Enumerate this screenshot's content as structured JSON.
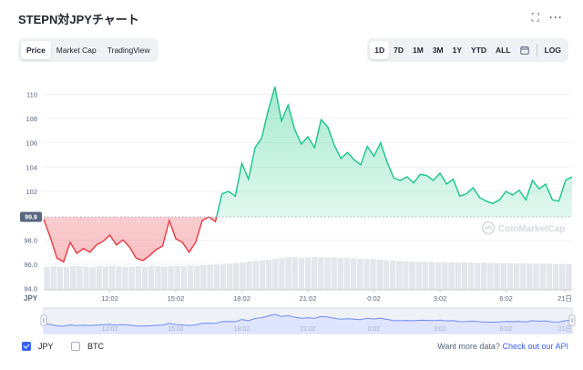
{
  "header": {
    "title": "STEPN対JPYチャート",
    "expand_icon": "expand-icon",
    "more_icon": "more-icon"
  },
  "tabs": [
    {
      "label": "Price",
      "active": true
    },
    {
      "label": "Market Cap",
      "active": false
    },
    {
      "label": "TradingView",
      "active": false
    }
  ],
  "ranges": [
    {
      "label": "1D",
      "active": true
    },
    {
      "label": "7D",
      "active": false
    },
    {
      "label": "1M",
      "active": false
    },
    {
      "label": "3M",
      "active": false
    },
    {
      "label": "1Y",
      "active": false
    },
    {
      "label": "YTD",
      "active": false
    },
    {
      "label": "ALL",
      "active": false
    }
  ],
  "calendar_icon": "calendar-icon",
  "log_label": "LOG",
  "watermark": "CoinMarketCap",
  "colors": {
    "up": "#16c784",
    "down": "#ea3943",
    "brand": "#3861fb",
    "volume": "#e3e6eb"
  },
  "chart_data": {
    "type": "line",
    "currency_label": "JPY",
    "reference_value": 99.9,
    "y_ticks": [
      94.0,
      96.0,
      98.0,
      102,
      104,
      106,
      108,
      110
    ],
    "ylim": [
      93.9,
      111.6
    ],
    "x_ticks": [
      "12:02",
      "15:02",
      "18:02",
      "21:02",
      "0:02",
      "3:02",
      "6:02",
      "21日"
    ],
    "x_tick_hours": [
      3,
      6,
      9,
      12,
      15,
      18,
      21,
      24
    ],
    "xlim_hours": [
      0,
      24
    ],
    "series": [
      {
        "x": [
          0,
          0.3,
          0.6,
          0.9,
          1.2,
          1.5,
          1.8,
          2.1,
          2.4,
          2.7,
          3.0,
          3.3,
          3.6,
          3.9,
          4.2,
          4.5,
          4.8,
          5.1,
          5.4,
          5.7,
          6.0,
          6.3,
          6.6,
          6.9,
          7.2,
          7.5,
          7.8,
          8.1,
          8.4,
          8.7,
          9.0,
          9.3,
          9.6,
          9.9,
          10.2,
          10.5,
          10.8,
          11.1,
          11.4,
          11.7,
          12.0,
          12.3,
          12.6,
          12.9,
          13.2,
          13.5,
          13.8,
          14.1,
          14.4,
          14.7,
          15.0,
          15.3,
          15.6,
          15.9,
          16.2,
          16.5,
          16.8,
          17.1,
          17.4,
          17.7,
          18.0,
          18.3,
          18.6,
          18.9,
          19.2,
          19.5,
          19.8,
          20.1,
          20.4,
          20.7,
          21.0,
          21.3,
          21.6,
          21.9,
          22.2,
          22.5,
          22.8,
          23.1,
          23.4,
          23.7,
          24.0
        ],
        "values": [
          99.7,
          98.2,
          96.5,
          96.2,
          97.8,
          96.9,
          97.3,
          97.0,
          97.6,
          97.9,
          98.4,
          97.6,
          98.0,
          97.4,
          96.5,
          96.3,
          96.7,
          97.2,
          97.5,
          99.6,
          98.1,
          97.8,
          97.0,
          97.8,
          99.6,
          99.9,
          99.5,
          101.8,
          102.0,
          101.6,
          104.3,
          103.0,
          105.6,
          106.4,
          108.7,
          110.6,
          107.8,
          109.1,
          107.1,
          105.9,
          106.5,
          105.6,
          107.9,
          107.3,
          105.8,
          104.7,
          105.2,
          104.6,
          104.2,
          105.7,
          104.9,
          106.0,
          104.4,
          103.1,
          102.9,
          103.2,
          102.7,
          103.4,
          103.3,
          102.9,
          103.5,
          102.6,
          103.0,
          101.6,
          101.8,
          102.3,
          101.5,
          101.2,
          101.0,
          101.3,
          102.0,
          101.7,
          102.1,
          101.3,
          102.9,
          102.2,
          102.6,
          101.3,
          101.2,
          102.9,
          103.2
        ]
      }
    ],
    "volume": [
      0.7,
      0.72,
      0.71,
      0.7,
      0.73,
      0.72,
      0.71,
      0.7,
      0.72,
      0.71,
      0.73,
      0.72,
      0.7,
      0.71,
      0.72,
      0.71,
      0.73,
      0.72,
      0.71,
      0.72,
      0.73,
      0.72,
      0.74,
      0.73,
      0.75,
      0.76,
      0.77,
      0.79,
      0.8,
      0.82,
      0.84,
      0.86,
      0.88,
      0.9,
      0.92,
      0.95,
      0.97,
      0.99,
      1.0,
      0.98,
      0.99,
      1.0,
      0.99,
      0.98,
      0.99,
      0.97,
      0.98,
      0.96,
      0.95,
      0.94,
      0.93,
      0.92,
      0.9,
      0.89,
      0.88,
      0.87,
      0.86,
      0.85,
      0.86,
      0.85,
      0.84,
      0.85,
      0.84,
      0.83,
      0.84,
      0.83,
      0.82,
      0.83,
      0.82,
      0.81,
      0.82,
      0.81,
      0.8,
      0.81,
      0.8,
      0.79,
      0.8,
      0.79,
      0.78,
      0.79,
      0.78
    ],
    "legend": [
      {
        "label": "JPY",
        "checked": true
      },
      {
        "label": "BTC",
        "checked": false
      }
    ]
  },
  "footer": {
    "prompt": "Want more data?",
    "link": "Check out our API"
  }
}
